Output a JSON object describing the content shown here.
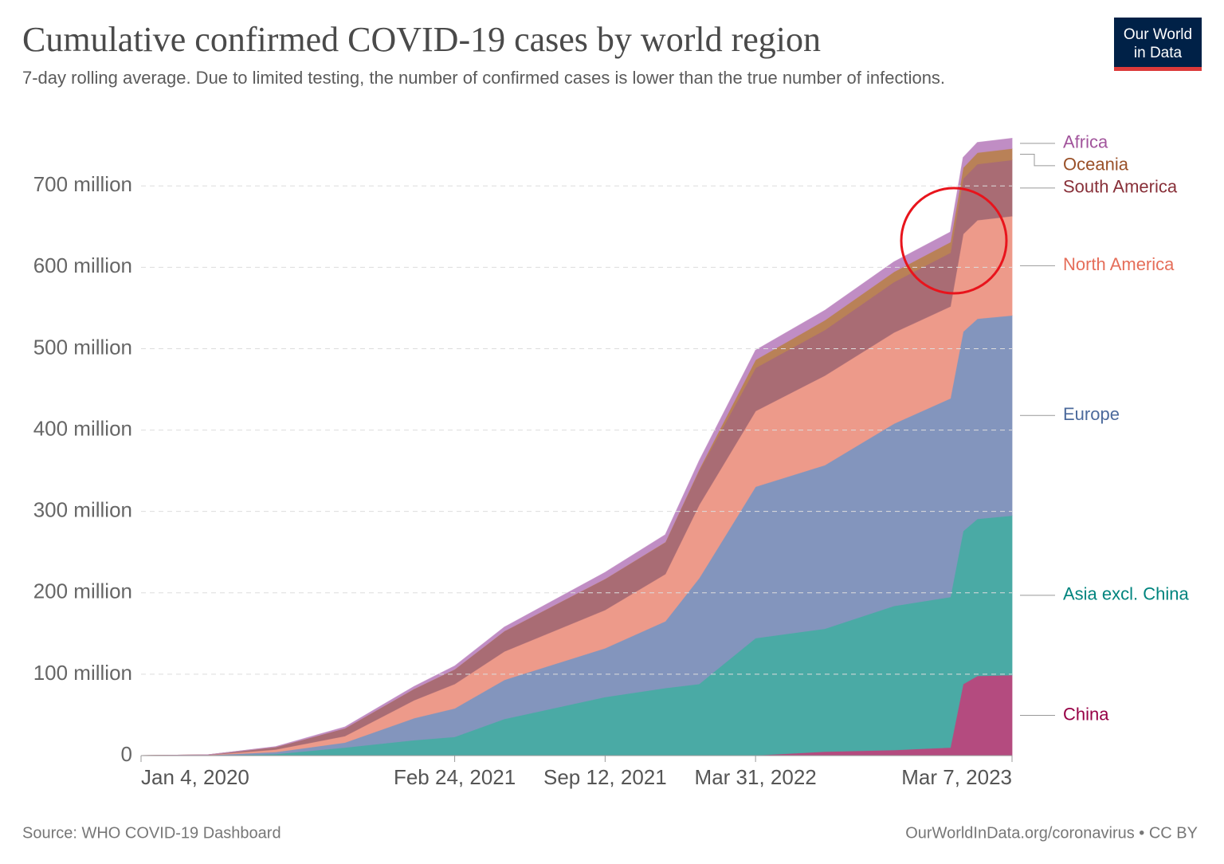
{
  "chart_data": {
    "type": "stacked_area",
    "title": "Cumulative confirmed COVID-19 cases by world region",
    "subtitle": "7-day rolling average. Due to limited testing, the number of confirmed cases is lower than the true number of infections.",
    "source": "Source: WHO COVID-19 Dashboard",
    "credit": "OurWorldInData.org/coronavirus • CC BY",
    "logo": {
      "line1": "Our World",
      "line2": "in Data"
    },
    "x": [
      "2020-01-04",
      "2020-04-01",
      "2020-07-01",
      "2020-10-01",
      "2021-01-01",
      "2021-02-24",
      "2021-05-01",
      "2021-09-12",
      "2021-12-01",
      "2022-01-15",
      "2022-03-31",
      "2022-07-01",
      "2022-10-01",
      "2022-12-15",
      "2023-01-01",
      "2023-01-20",
      "2023-03-07"
    ],
    "xlim": [
      "2020-01-04",
      "2023-03-07"
    ],
    "xticks": [
      {
        "value": "2020-01-04",
        "label": "Jan 4, 2020"
      },
      {
        "value": "2021-02-24",
        "label": "Feb 24, 2021"
      },
      {
        "value": "2021-09-12",
        "label": "Sep 12, 2021"
      },
      {
        "value": "2022-03-31",
        "label": "Mar 31, 2022"
      },
      {
        "value": "2023-03-07",
        "label": "Mar 7, 2023"
      }
    ],
    "ylim": [
      0,
      760000000
    ],
    "yticks": [
      0,
      {
        "value": 100000000,
        "label": "100 million"
      },
      {
        "value": 200000000,
        "label": "200 million"
      },
      {
        "value": 300000000,
        "label": "300 million"
      },
      {
        "value": 400000000,
        "label": "400 million"
      },
      {
        "value": 500000000,
        "label": "500 million"
      },
      {
        "value": 600000000,
        "label": "600 million"
      },
      {
        "value": 700000000,
        "label": "700 million"
      }
    ],
    "grid": true,
    "series": [
      {
        "name": "China",
        "color": "#b44b7f",
        "label_color": "#970046",
        "values": [
          0,
          80000,
          85000,
          91000,
          96000,
          100000,
          103000,
          108000,
          120000,
          140000,
          500000,
          5000000,
          7000000,
          10000000,
          88000000,
          98000000,
          99000000
        ]
      },
      {
        "name": "Asia excl. China",
        "color": "#4aaaa5",
        "label_color": "#00847e",
        "values": [
          0,
          100000,
          2000000,
          10000000,
          19000000,
          23000000,
          45000000,
          72000000,
          83000000,
          88000000,
          144000000,
          151000000,
          177000000,
          185000000,
          188000000,
          193000000,
          196000000
        ]
      },
      {
        "name": "Europe",
        "color": "#8395bd",
        "label_color": "#4c6a9c",
        "values": [
          0,
          500000,
          2500000,
          6000000,
          27000000,
          35000000,
          48000000,
          60000000,
          82000000,
          130000000,
          186000000,
          201000000,
          224000000,
          244000000,
          245000000,
          246000000,
          246000000
        ]
      },
      {
        "name": "North America",
        "color": "#ed9a8a",
        "label_color": "#e56e5a",
        "values": [
          0,
          200000,
          3000000,
          8000000,
          22000000,
          30000000,
          35000000,
          47000000,
          58000000,
          90000000,
          93000000,
          110000000,
          112000000,
          113000000,
          120000000,
          121000000,
          122000000
        ]
      },
      {
        "name": "South America",
        "color": "#a96c74",
        "label_color": "#883039",
        "values": [
          0,
          20000,
          3000000,
          9500000,
          14000000,
          18000000,
          25000000,
          38000000,
          39000000,
          42000000,
          53000000,
          56000000,
          62000000,
          66000000,
          68000000,
          69000000,
          69000000
        ]
      },
      {
        "name": "Oceania",
        "color": "#b98157",
        "label_color": "#9a5129",
        "values": [
          0,
          10000,
          10000,
          30000,
          50000,
          60000,
          70000,
          200000,
          400000,
          1500000,
          10000000,
          12000000,
          12500000,
          13000000,
          13500000,
          14000000,
          14000000
        ]
      },
      {
        "name": "Africa",
        "color": "#c08dc4",
        "label_color": "#a2559c",
        "values": [
          0,
          10000,
          400000,
          1500000,
          2800000,
          3900000,
          4700000,
          7800000,
          8800000,
          10500000,
          11500000,
          12000000,
          12200000,
          12300000,
          12400000,
          12400000,
          12500000
        ]
      }
    ]
  }
}
